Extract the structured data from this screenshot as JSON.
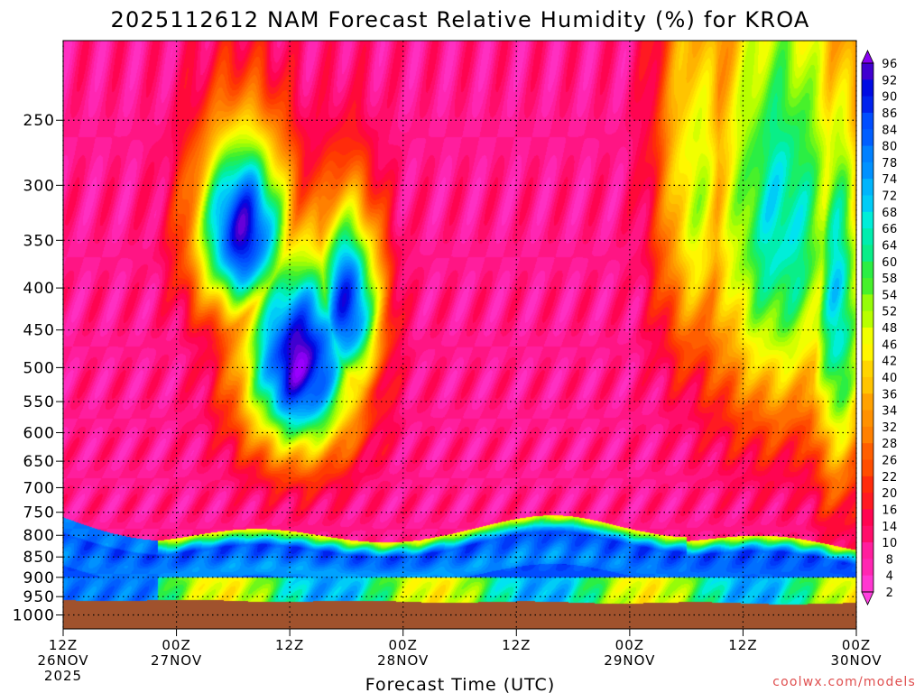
{
  "chart_data": {
    "type": "heatmap",
    "title": "2025112612 NAM Forecast Relative Humidity (%) for KROA",
    "xlabel": "Forecast Time (UTC)",
    "ylabel": "",
    "x_unit": "hours from 2025-11-26 12Z",
    "y_unit": "hPa",
    "ylim": [
      1040,
      200
    ],
    "y_scale": "log-pressure",
    "grid": true,
    "y_ticks": [
      250,
      300,
      350,
      400,
      450,
      500,
      550,
      600,
      650,
      700,
      750,
      800,
      850,
      900,
      950,
      1000
    ],
    "x_ticks": [
      {
        "hour": 0,
        "line1": "12Z",
        "line2": "26NOV",
        "line3": "2025"
      },
      {
        "hour": 12,
        "line1": "00Z",
        "line2": "27NOV",
        "line3": ""
      },
      {
        "hour": 24,
        "line1": "12Z",
        "line2": "",
        "line3": ""
      },
      {
        "hour": 36,
        "line1": "00Z",
        "line2": "28NOV",
        "line3": ""
      },
      {
        "hour": 48,
        "line1": "12Z",
        "line2": "",
        "line3": ""
      },
      {
        "hour": 60,
        "line1": "00Z",
        "line2": "29NOV",
        "line3": ""
      },
      {
        "hour": 72,
        "line1": "12Z",
        "line2": "",
        "line3": ""
      },
      {
        "hour": 84,
        "line1": "00Z",
        "line2": "30NOV",
        "line3": ""
      }
    ],
    "colorbar": {
      "labels": [
        96,
        92,
        90,
        86,
        84,
        80,
        78,
        74,
        72,
        68,
        66,
        64,
        60,
        58,
        54,
        52,
        48,
        46,
        42,
        40,
        36,
        34,
        32,
        28,
        26,
        22,
        20,
        16,
        14,
        10,
        8,
        4,
        2
      ],
      "stops": [
        {
          "rh": 0,
          "color": "#ff44e8"
        },
        {
          "rh": 8,
          "color": "#ff22aa"
        },
        {
          "rh": 16,
          "color": "#ff0044"
        },
        {
          "rh": 22,
          "color": "#ff3300"
        },
        {
          "rh": 28,
          "color": "#ff6600"
        },
        {
          "rh": 34,
          "color": "#ff9900"
        },
        {
          "rh": 40,
          "color": "#ffcc00"
        },
        {
          "rh": 46,
          "color": "#ffff00"
        },
        {
          "rh": 52,
          "color": "#aaff00"
        },
        {
          "rh": 58,
          "color": "#33ee33"
        },
        {
          "rh": 64,
          "color": "#00ee99"
        },
        {
          "rh": 68,
          "color": "#00eeee"
        },
        {
          "rh": 74,
          "color": "#00aaff"
        },
        {
          "rh": 80,
          "color": "#0077ff"
        },
        {
          "rh": 86,
          "color": "#0044ff"
        },
        {
          "rh": 92,
          "color": "#0000dd"
        },
        {
          "rh": 96,
          "color": "#5500cc"
        },
        {
          "rh": 100,
          "color": "#9900ff"
        }
      ]
    },
    "ground_color": "#a0522d",
    "approx_features": [
      {
        "desc": "moist layer aloft",
        "t0": 13,
        "t1": 38,
        "p_top": 250,
        "p_bot": 700,
        "rh_max": 90
      },
      {
        "desc": "low-level moist layer",
        "t0": 0,
        "t1": 84,
        "p_top": 820,
        "p_bot": 960,
        "rh_max": 86
      },
      {
        "desc": "moist region late period",
        "t0": 60,
        "t1": 86,
        "p_top": 200,
        "p_bot": 650,
        "rh_max": 68
      }
    ]
  },
  "credit": "coolwx.com/models",
  "credit_color": "#e05050"
}
